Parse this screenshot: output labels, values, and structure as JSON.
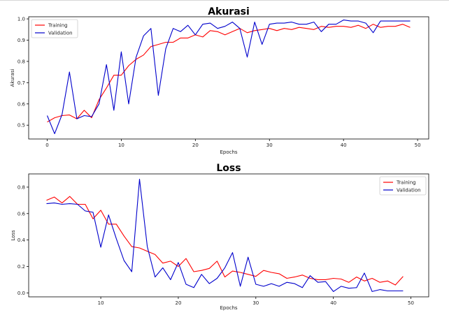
{
  "chart_data": [
    {
      "type": "line",
      "title": "Akurasi",
      "xlabel": "Epochs",
      "ylabel": "Akurasi",
      "xlim": [
        -2.5,
        51.5
      ],
      "ylim": [
        0.435,
        1.01
      ],
      "xticks": [
        0,
        10,
        20,
        30,
        40,
        50
      ],
      "yticks": [
        0.5,
        0.6,
        0.7,
        0.8,
        0.9,
        1.0
      ],
      "ytick_labels": [
        "0.5",
        "0.6",
        "0.7",
        "0.8",
        "0.9",
        "1.0"
      ],
      "legend_position": "top-left",
      "x": [
        0,
        1,
        2,
        3,
        4,
        5,
        6,
        7,
        8,
        9,
        10,
        11,
        12,
        13,
        14,
        15,
        16,
        17,
        18,
        19,
        20,
        21,
        22,
        23,
        24,
        25,
        26,
        27,
        28,
        29,
        30,
        31,
        32,
        33,
        34,
        35,
        36,
        37,
        38,
        39,
        40,
        41,
        42,
        43,
        44,
        45,
        46,
        47,
        48,
        49
      ],
      "series": [
        {
          "name": "Training",
          "color": "#ff0000",
          "values": [
            0.515,
            0.535,
            0.545,
            0.548,
            0.53,
            0.57,
            0.535,
            0.62,
            0.675,
            0.735,
            0.735,
            0.78,
            0.81,
            0.83,
            0.87,
            0.88,
            0.89,
            0.89,
            0.91,
            0.91,
            0.925,
            0.915,
            0.945,
            0.94,
            0.925,
            0.94,
            0.955,
            0.935,
            0.945,
            0.95,
            0.955,
            0.945,
            0.955,
            0.95,
            0.96,
            0.955,
            0.95,
            0.965,
            0.96,
            0.965,
            0.965,
            0.96,
            0.97,
            0.955,
            0.975,
            0.96,
            0.965,
            0.965,
            0.975,
            0.96
          ]
        },
        {
          "name": "Validation",
          "color": "#0000cc",
          "values": [
            0.545,
            0.46,
            0.55,
            0.75,
            0.53,
            0.545,
            0.54,
            0.6,
            0.785,
            0.57,
            0.845,
            0.6,
            0.82,
            0.92,
            0.955,
            0.64,
            0.86,
            0.955,
            0.94,
            0.97,
            0.925,
            0.975,
            0.98,
            0.955,
            0.965,
            0.985,
            0.955,
            0.82,
            0.985,
            0.88,
            0.975,
            0.98,
            0.98,
            0.985,
            0.975,
            0.975,
            0.985,
            0.94,
            0.975,
            0.975,
            0.995,
            0.99,
            0.99,
            0.98,
            0.935,
            0.99,
            0.99,
            0.99,
            0.99,
            0.99
          ]
        }
      ]
    },
    {
      "type": "line",
      "title": "Loss",
      "xlabel": "Epochs",
      "ylabel": "Loss",
      "xlim": [
        0.7,
        52.3
      ],
      "ylim": [
        -0.03,
        0.9
      ],
      "xticks": [
        10,
        20,
        30,
        40,
        50
      ],
      "yticks": [
        0.0,
        0.2,
        0.4,
        0.6,
        0.8
      ],
      "ytick_labels": [
        "0.0",
        "0.2",
        "0.4",
        "0.6",
        "0.8"
      ],
      "legend_position": "top-right",
      "x": [
        3,
        4,
        5,
        6,
        7,
        8,
        9,
        10,
        11,
        12,
        13,
        14,
        15,
        16,
        17,
        18,
        19,
        20,
        21,
        22,
        23,
        24,
        25,
        26,
        27,
        28,
        29,
        30,
        31,
        32,
        33,
        34,
        35,
        36,
        37,
        38,
        39,
        40,
        41,
        42,
        43,
        44,
        45,
        46,
        47,
        48,
        49
      ],
      "series": [
        {
          "name": "Training",
          "color": "#ff0000",
          "values": [
            0.7,
            0.725,
            0.68,
            0.73,
            0.67,
            0.67,
            0.56,
            0.625,
            0.52,
            0.52,
            0.43,
            0.35,
            0.34,
            0.315,
            0.29,
            0.225,
            0.24,
            0.2,
            0.26,
            0.16,
            0.17,
            0.185,
            0.24,
            0.12,
            0.165,
            0.155,
            0.14,
            0.125,
            0.17,
            0.155,
            0.145,
            0.11,
            0.12,
            0.135,
            0.11,
            0.1,
            0.1,
            0.11,
            0.105,
            0.08,
            0.12,
            0.09,
            0.11,
            0.08,
            0.09,
            0.06,
            0.125
          ]
        },
        {
          "name": "Validation",
          "color": "#0000cc",
          "values": [
            0.675,
            0.68,
            0.67,
            0.675,
            0.67,
            0.62,
            0.61,
            0.345,
            0.59,
            0.41,
            0.245,
            0.16,
            0.86,
            0.35,
            0.12,
            0.19,
            0.1,
            0.23,
            0.065,
            0.04,
            0.14,
            0.07,
            0.11,
            0.19,
            0.305,
            0.05,
            0.27,
            0.065,
            0.05,
            0.07,
            0.05,
            0.08,
            0.07,
            0.04,
            0.13,
            0.08,
            0.085,
            0.01,
            0.05,
            0.035,
            0.04,
            0.15,
            0.01,
            0.025,
            0.015,
            0.015,
            0.015
          ]
        }
      ]
    }
  ]
}
